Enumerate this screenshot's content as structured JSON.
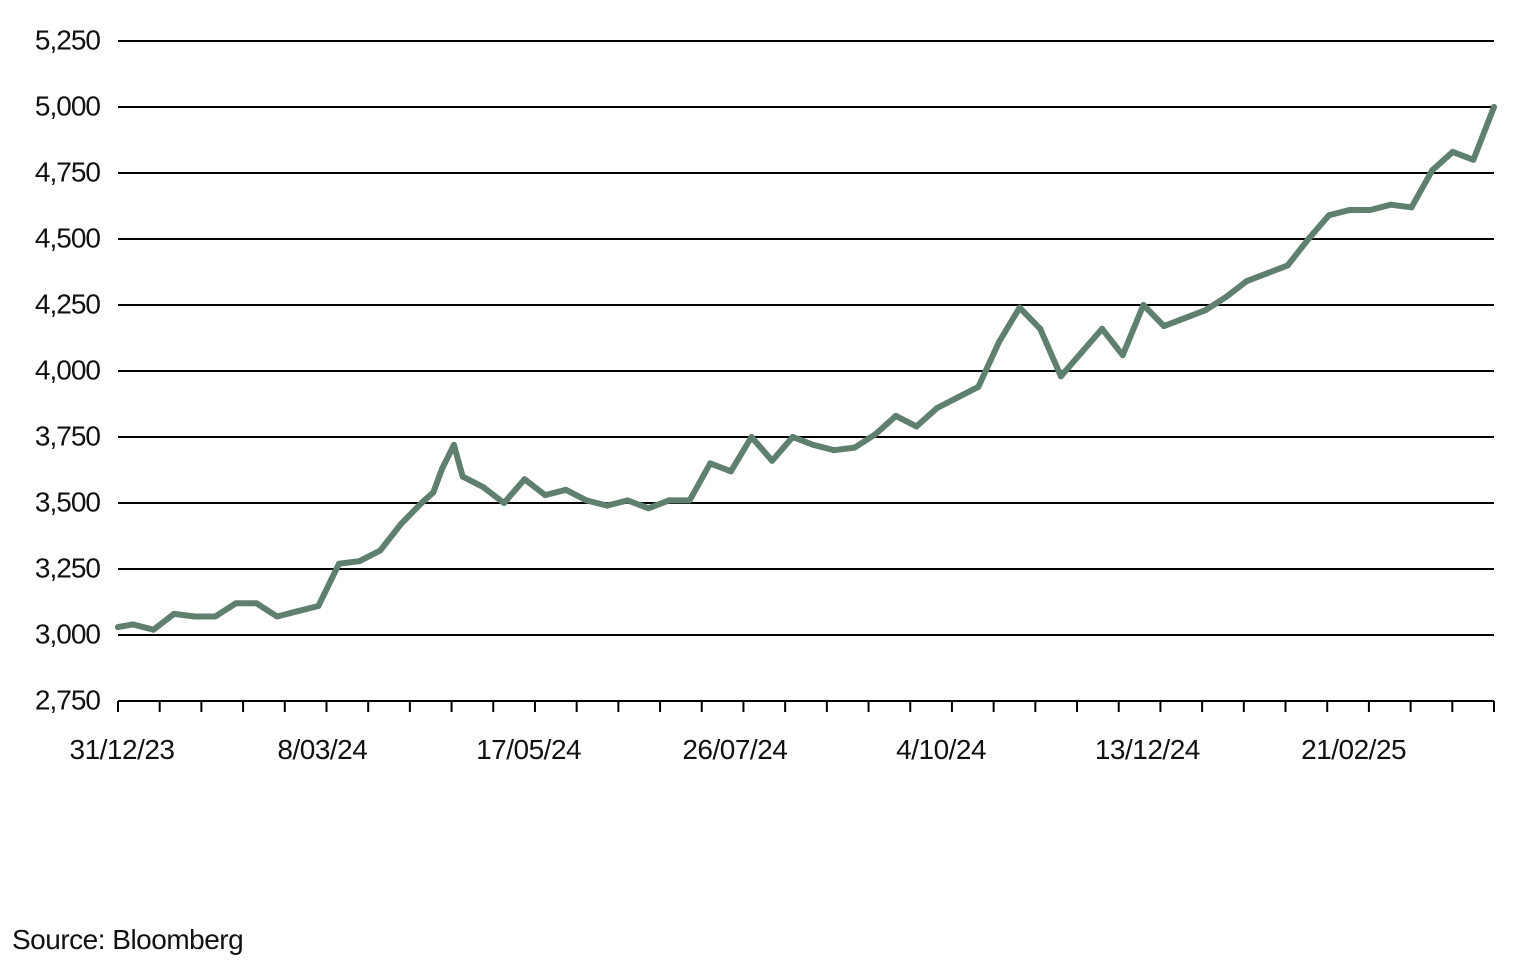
{
  "chart_data": {
    "type": "line",
    "title": "",
    "xlabel": "",
    "ylabel": "",
    "ylim": [
      2750,
      5250
    ],
    "yticks": [
      "2,750",
      "3,000",
      "3,250",
      "3,500",
      "3,750",
      "4,000",
      "4,250",
      "4,500",
      "4,750",
      "5,000",
      "5,250"
    ],
    "ytick_values": [
      2750,
      3000,
      3250,
      3500,
      3750,
      4000,
      4250,
      4500,
      4750,
      5000,
      5250
    ],
    "xlim": [
      "2023-12-31",
      "2025-04-11"
    ],
    "xticks": [
      "31/12/23",
      "8/03/24",
      "17/05/24",
      "26/07/24",
      "4/10/24",
      "13/12/24",
      "21/02/25"
    ],
    "xtick_dates": [
      "2023-12-31",
      "2024-03-08",
      "2024-05-17",
      "2024-07-26",
      "2024-10-04",
      "2024-12-13",
      "2025-02-21"
    ],
    "grid": true,
    "line_color": "#5f7f6f",
    "series": [
      {
        "x": [
          "2023-12-31",
          "2024-01-05",
          "2024-01-12",
          "2024-01-19",
          "2024-01-26",
          "2024-02-02",
          "2024-02-09",
          "2024-02-16",
          "2024-02-23",
          "2024-03-01",
          "2024-03-08",
          "2024-03-15",
          "2024-03-22",
          "2024-03-29",
          "2024-04-05",
          "2024-04-12",
          "2024-04-16",
          "2024-04-19",
          "2024-04-23",
          "2024-04-26",
          "2024-05-03",
          "2024-05-10",
          "2024-05-17",
          "2024-05-24",
          "2024-05-31",
          "2024-06-07",
          "2024-06-14",
          "2024-06-21",
          "2024-06-28",
          "2024-07-05",
          "2024-07-12",
          "2024-07-19",
          "2024-07-26",
          "2024-08-02",
          "2024-08-09",
          "2024-08-16",
          "2024-08-23",
          "2024-08-30",
          "2024-09-06",
          "2024-09-13",
          "2024-09-20",
          "2024-09-27",
          "2024-10-04",
          "2024-10-11",
          "2024-10-18",
          "2024-10-25",
          "2024-11-01",
          "2024-11-08",
          "2024-11-15",
          "2024-11-22",
          "2024-11-29",
          "2024-12-06",
          "2024-12-13",
          "2024-12-20",
          "2024-12-27",
          "2025-01-03",
          "2025-01-10",
          "2025-01-17",
          "2025-01-24",
          "2025-01-31",
          "2025-02-07",
          "2025-02-14",
          "2025-02-21",
          "2025-02-28",
          "2025-03-07",
          "2025-03-14",
          "2025-03-21",
          "2025-03-28",
          "2025-04-04",
          "2025-04-11"
        ],
        "values": [
          3030,
          3040,
          3020,
          3080,
          3070,
          3070,
          3120,
          3120,
          3070,
          3090,
          3110,
          3270,
          3280,
          3320,
          3420,
          3500,
          3540,
          3630,
          3720,
          3600,
          3560,
          3500,
          3590,
          3530,
          3550,
          3510,
          3490,
          3510,
          3480,
          3510,
          3510,
          3650,
          3620,
          3750,
          3660,
          3750,
          3720,
          3700,
          3710,
          3760,
          3830,
          3790,
          3860,
          3900,
          3940,
          4110,
          4240,
          4160,
          3980,
          4070,
          4160,
          4060,
          4250,
          4170,
          4200,
          4230,
          4280,
          4340,
          4370,
          4400,
          4500,
          4590,
          4610,
          4610,
          4630,
          4620,
          4760,
          4830,
          4800,
          5000
        ]
      }
    ]
  },
  "source_note": "Source: Bloomberg"
}
